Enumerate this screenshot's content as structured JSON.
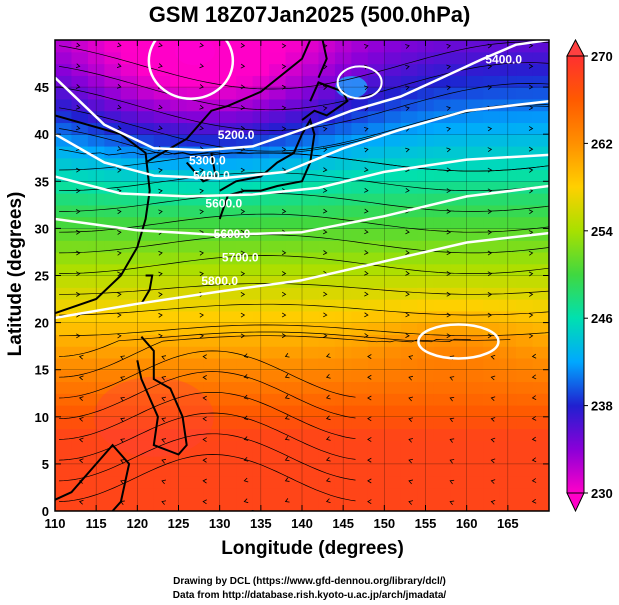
{
  "title": "GSM 18Z07Jan2025 (500.0hPa)",
  "xlabel": "Longitude (degrees)",
  "ylabel": "Latitude  (degrees)",
  "credits": [
    "Drawing by DCL (https://www.gfd-dennou.org/library/dcl/)",
    "Data from http://database.rish.kyoto-u.ac.jp/arch/jmadata/"
  ],
  "chart_data": {
    "type": "heatmap",
    "field": "temperature",
    "x_ticks": [
      110,
      115,
      120,
      125,
      130,
      135,
      140,
      145,
      150,
      155,
      160,
      165
    ],
    "y_ticks": [
      0,
      5,
      10,
      15,
      20,
      25,
      30,
      35,
      40,
      45
    ],
    "xlim": [
      110,
      170
    ],
    "ylim": [
      0,
      50
    ],
    "colorbar": {
      "min": 230,
      "max": 270,
      "ticks": [
        230,
        238,
        246,
        254,
        262,
        270
      ],
      "colors": [
        "#ff00c8",
        "#8a00d8",
        "#2020d0",
        "#00a8ff",
        "#00e0b0",
        "#40d840",
        "#a8e000",
        "#ffd000",
        "#ff9000",
        "#ff5a00",
        "#ff3030"
      ]
    },
    "contour_labels": [
      {
        "text": "5200.0",
        "lon": 132,
        "lat": 39.5
      },
      {
        "text": "5300.0",
        "lon": 128.5,
        "lat": 36.8
      },
      {
        "text": "5400.0",
        "lon": 129,
        "lat": 35.2
      },
      {
        "text": "5600.0",
        "lon": 130.5,
        "lat": 32.2
      },
      {
        "text": "5600.0",
        "lon": 131.5,
        "lat": 29.0
      },
      {
        "text": "5700.0",
        "lon": 132.5,
        "lat": 26.5
      },
      {
        "text": "5800.0",
        "lon": 130,
        "lat": 24.0
      },
      {
        "text": "5400.0",
        "lon": 164.5,
        "lat": 47.5
      }
    ]
  }
}
